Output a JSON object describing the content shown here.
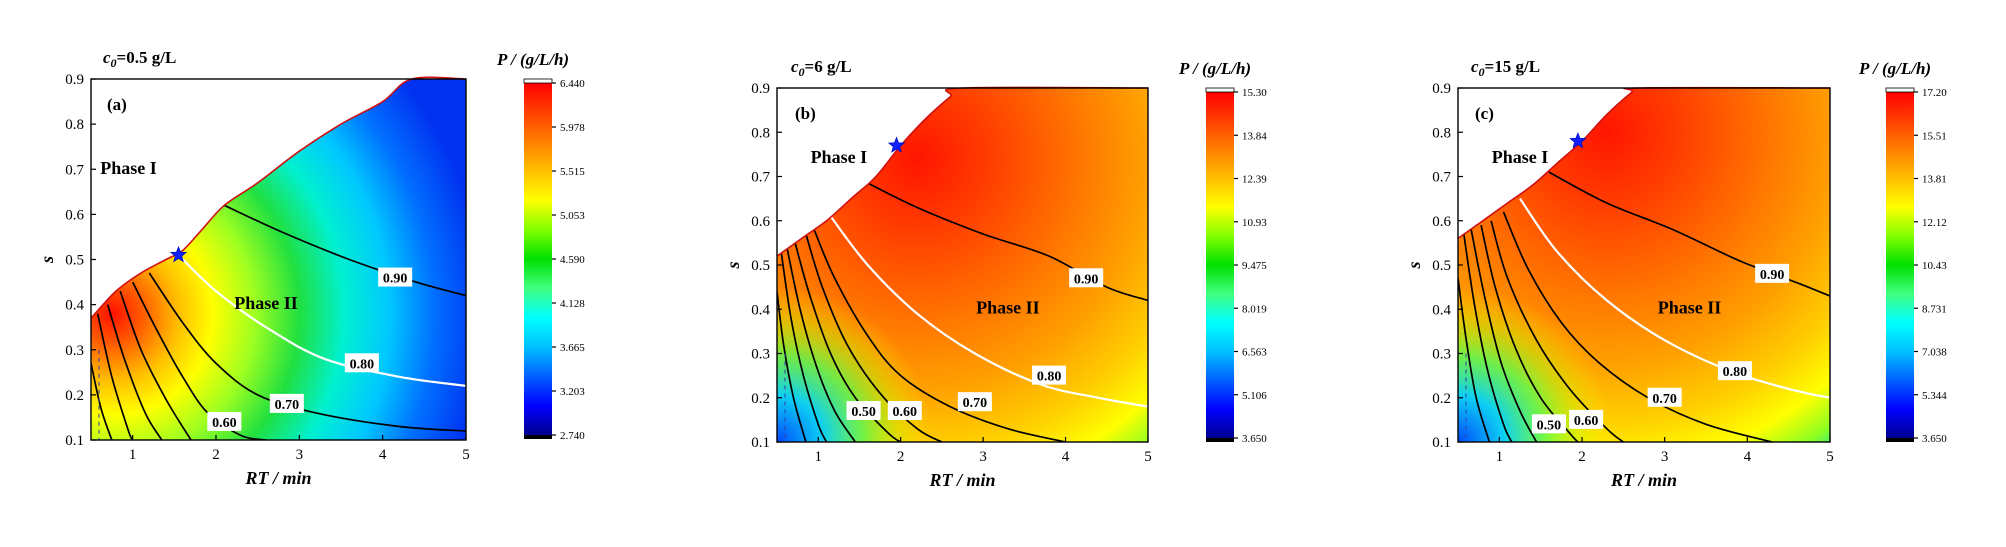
{
  "figure": {
    "xlabel": "RT / min",
    "ylabel": "s",
    "phase1_label": "Phase I",
    "phase2_label": "Phase II",
    "colorbar_title": "P / (g/L/h)"
  },
  "chart_data": [
    {
      "type": "heatmap",
      "tag": "(a)",
      "title": "c0=0.5 g/L",
      "title_main": "c",
      "title_sub": "0",
      "title_rest": "=0.5 g/L",
      "xlim": [
        0.5,
        5
      ],
      "ylim": [
        0.1,
        0.9
      ],
      "x_ticks": [
        "1",
        "2",
        "3",
        "4",
        "5"
      ],
      "y_ticks": [
        "0.1",
        "0.2",
        "0.3",
        "0.4",
        "0.5",
        "0.6",
        "0.7",
        "0.8",
        "0.9"
      ],
      "boundary": [
        [
          0.5,
          0.37
        ],
        [
          0.8,
          0.43
        ],
        [
          1.1,
          0.47
        ],
        [
          1.4,
          0.5
        ],
        [
          1.6,
          0.52
        ],
        [
          1.85,
          0.57
        ],
        [
          2.1,
          0.62
        ],
        [
          2.5,
          0.67
        ],
        [
          3.0,
          0.74
        ],
        [
          3.5,
          0.8
        ],
        [
          4.0,
          0.85
        ],
        [
          4.35,
          0.9
        ],
        [
          5.0,
          0.9
        ]
      ],
      "optimum": {
        "x": 1.55,
        "y": 0.51
      },
      "peak": {
        "x": 0.75,
        "y": 0.38
      },
      "colorbar_ticks": [
        "6.440",
        "5.978",
        "5.515",
        "5.053",
        "4.590",
        "4.128",
        "3.665",
        "3.203",
        "2.740"
      ],
      "colorbar_range": [
        2.74,
        6.44
      ],
      "contours": [
        {
          "label": "0.90",
          "white": false,
          "points": [
            [
              2.1,
              0.62
            ],
            [
              2.8,
              0.56
            ],
            [
              3.6,
              0.5
            ],
            [
              4.4,
              0.45
            ],
            [
              5.0,
              0.42
            ]
          ],
          "label_at": [
            4.15,
            0.46
          ]
        },
        {
          "label": "0.80",
          "white": true,
          "points": [
            [
              1.55,
              0.51
            ],
            [
              2.0,
              0.43
            ],
            [
              2.6,
              0.35
            ],
            [
              3.3,
              0.28
            ],
            [
              4.2,
              0.24
            ],
            [
              5.0,
              0.22
            ]
          ],
          "label_at": [
            3.75,
            0.27
          ]
        },
        {
          "label": "0.70",
          "white": false,
          "points": [
            [
              1.2,
              0.47
            ],
            [
              1.6,
              0.36
            ],
            [
              2.0,
              0.27
            ],
            [
              2.5,
              0.2
            ],
            [
              3.2,
              0.16
            ],
            [
              4.2,
              0.13
            ],
            [
              5.0,
              0.12
            ]
          ],
          "label_at": [
            2.85,
            0.18
          ]
        },
        {
          "label": "0.60",
          "white": false,
          "points": [
            [
              1.0,
              0.45
            ],
            [
              1.3,
              0.34
            ],
            [
              1.6,
              0.24
            ],
            [
              1.9,
              0.16
            ],
            [
              2.3,
              0.11
            ],
            [
              2.6,
              0.1
            ]
          ],
          "label_at": [
            2.1,
            0.14
          ]
        },
        {
          "label": "",
          "white": false,
          "points": [
            [
              0.85,
              0.43
            ],
            [
              1.1,
              0.3
            ],
            [
              1.4,
              0.19
            ],
            [
              1.7,
              0.1
            ]
          ],
          "label_at": null
        },
        {
          "label": "",
          "white": false,
          "points": [
            [
              0.7,
              0.4
            ],
            [
              0.9,
              0.28
            ],
            [
              1.15,
              0.16
            ],
            [
              1.35,
              0.1
            ]
          ],
          "label_at": null
        },
        {
          "label": "",
          "white": false,
          "points": [
            [
              0.58,
              0.38
            ],
            [
              0.75,
              0.24
            ],
            [
              0.95,
              0.12
            ],
            [
              1.0,
              0.1
            ]
          ],
          "label_at": null
        },
        {
          "label": "",
          "white": false,
          "points": [
            [
              0.5,
              0.27
            ],
            [
              0.62,
              0.17
            ],
            [
              0.75,
              0.1
            ]
          ],
          "label_at": null
        }
      ]
    },
    {
      "type": "heatmap",
      "tag": "(b)",
      "title": "c0=6 g/L",
      "title_main": "c",
      "title_sub": "0",
      "title_rest": "=6 g/L",
      "xlim": [
        0.5,
        5
      ],
      "ylim": [
        0.1,
        0.9
      ],
      "x_ticks": [
        "1",
        "2",
        "3",
        "4",
        "5"
      ],
      "y_ticks": [
        "0.1",
        "0.2",
        "0.3",
        "0.4",
        "0.5",
        "0.6",
        "0.7",
        "0.8",
        "0.9"
      ],
      "boundary": [
        [
          0.5,
          0.52
        ],
        [
          0.8,
          0.56
        ],
        [
          1.1,
          0.6
        ],
        [
          1.4,
          0.65
        ],
        [
          1.7,
          0.7
        ],
        [
          2.0,
          0.77
        ],
        [
          2.3,
          0.83
        ],
        [
          2.6,
          0.88
        ],
        [
          2.75,
          0.9
        ],
        [
          5.0,
          0.9
        ]
      ],
      "optimum": {
        "x": 1.95,
        "y": 0.77
      },
      "peak": {
        "x": 2.2,
        "y": 0.74
      },
      "colorbar_ticks": [
        "15.30",
        "13.84",
        "12.39",
        "10.93",
        "9.475",
        "8.019",
        "6.563",
        "5.106",
        "3.650"
      ],
      "colorbar_range": [
        3.65,
        15.3
      ],
      "contours": [
        {
          "label": "0.90",
          "white": false,
          "points": [
            [
              1.55,
              0.69
            ],
            [
              2.2,
              0.63
            ],
            [
              3.0,
              0.57
            ],
            [
              3.8,
              0.52
            ],
            [
              4.5,
              0.45
            ],
            [
              5.0,
              0.42
            ]
          ],
          "label_at": [
            4.25,
            0.47
          ]
        },
        {
          "label": "0.80",
          "white": true,
          "points": [
            [
              1.15,
              0.61
            ],
            [
              1.6,
              0.5
            ],
            [
              2.2,
              0.39
            ],
            [
              2.9,
              0.3
            ],
            [
              3.7,
              0.23
            ],
            [
              4.4,
              0.2
            ],
            [
              5.0,
              0.18
            ]
          ],
          "label_at": [
            3.8,
            0.25
          ]
        },
        {
          "label": "0.70",
          "white": false,
          "points": [
            [
              0.95,
              0.58
            ],
            [
              1.2,
              0.47
            ],
            [
              1.6,
              0.34
            ],
            [
              2.0,
              0.25
            ],
            [
              2.6,
              0.18
            ],
            [
              3.3,
              0.13
            ],
            [
              4.0,
              0.1
            ]
          ],
          "label_at": [
            2.9,
            0.19
          ]
        },
        {
          "label": "0.60",
          "white": false,
          "points": [
            [
              0.85,
              0.57
            ],
            [
              1.05,
              0.45
            ],
            [
              1.35,
              0.32
            ],
            [
              1.75,
              0.21
            ],
            [
              2.2,
              0.13
            ],
            [
              2.5,
              0.1
            ]
          ],
          "label_at": [
            2.05,
            0.17
          ]
        },
        {
          "label": "0.50",
          "white": false,
          "points": [
            [
              0.72,
              0.55
            ],
            [
              0.9,
              0.43
            ],
            [
              1.15,
              0.3
            ],
            [
              1.45,
              0.2
            ],
            [
              1.85,
              0.12
            ],
            [
              2.0,
              0.1
            ]
          ],
          "label_at": [
            1.55,
            0.17
          ]
        },
        {
          "label": "",
          "white": false,
          "points": [
            [
              0.62,
              0.54
            ],
            [
              0.78,
              0.4
            ],
            [
              0.98,
              0.27
            ],
            [
              1.2,
              0.17
            ],
            [
              1.45,
              0.1
            ]
          ],
          "label_at": null
        },
        {
          "label": "",
          "white": false,
          "points": [
            [
              0.55,
              0.53
            ],
            [
              0.67,
              0.38
            ],
            [
              0.82,
              0.25
            ],
            [
              1.0,
              0.14
            ],
            [
              1.1,
              0.1
            ]
          ],
          "label_at": null
        },
        {
          "label": "",
          "white": false,
          "points": [
            [
              0.5,
              0.44
            ],
            [
              0.58,
              0.32
            ],
            [
              0.7,
              0.2
            ],
            [
              0.85,
              0.1
            ]
          ],
          "label_at": null
        }
      ]
    },
    {
      "type": "heatmap",
      "tag": "(c)",
      "title": "c0=15 g/L",
      "title_main": "c",
      "title_sub": "0",
      "title_rest": "=15 g/L",
      "xlim": [
        0.5,
        5
      ],
      "ylim": [
        0.1,
        0.9
      ],
      "x_ticks": [
        "1",
        "2",
        "3",
        "4",
        "5"
      ],
      "y_ticks": [
        "0.1",
        "0.2",
        "0.3",
        "0.4",
        "0.5",
        "0.6",
        "0.7",
        "0.8",
        "0.9"
      ],
      "boundary": [
        [
          0.5,
          0.56
        ],
        [
          0.8,
          0.6
        ],
        [
          1.1,
          0.64
        ],
        [
          1.4,
          0.68
        ],
        [
          1.7,
          0.73
        ],
        [
          2.0,
          0.78
        ],
        [
          2.3,
          0.84
        ],
        [
          2.6,
          0.89
        ],
        [
          2.7,
          0.9
        ],
        [
          5.0,
          0.9
        ]
      ],
      "optimum": {
        "x": 1.95,
        "y": 0.78
      },
      "peak": {
        "x": 2.3,
        "y": 0.8
      },
      "colorbar_ticks": [
        "17.20",
        "15.51",
        "13.81",
        "12.12",
        "10.43",
        "8.731",
        "7.038",
        "5.344",
        "3.650"
      ],
      "colorbar_range": [
        3.65,
        17.2
      ],
      "contours": [
        {
          "label": "0.90",
          "white": false,
          "points": [
            [
              1.6,
              0.71
            ],
            [
              2.3,
              0.64
            ],
            [
              3.1,
              0.58
            ],
            [
              3.9,
              0.51
            ],
            [
              4.6,
              0.46
            ],
            [
              5.0,
              0.43
            ]
          ],
          "label_at": [
            4.3,
            0.48
          ]
        },
        {
          "label": "0.80",
          "white": true,
          "points": [
            [
              1.25,
              0.65
            ],
            [
              1.7,
              0.53
            ],
            [
              2.3,
              0.42
            ],
            [
              3.0,
              0.33
            ],
            [
              3.8,
              0.26
            ],
            [
              4.5,
              0.22
            ],
            [
              5.0,
              0.2
            ]
          ],
          "label_at": [
            3.85,
            0.26
          ]
        },
        {
          "label": "0.70",
          "white": false,
          "points": [
            [
              1.05,
              0.62
            ],
            [
              1.35,
              0.49
            ],
            [
              1.75,
              0.37
            ],
            [
              2.2,
              0.28
            ],
            [
              2.8,
              0.2
            ],
            [
              3.5,
              0.14
            ],
            [
              4.3,
              0.1
            ]
          ],
          "label_at": [
            3.0,
            0.2
          ]
        },
        {
          "label": "0.60",
          "white": false,
          "points": [
            [
              0.9,
              0.6
            ],
            [
              1.1,
              0.47
            ],
            [
              1.45,
              0.33
            ],
            [
              1.85,
              0.22
            ],
            [
              2.3,
              0.13
            ],
            [
              2.5,
              0.1
            ]
          ],
          "label_at": [
            2.05,
            0.15
          ]
        },
        {
          "label": "0.50",
          "white": false,
          "points": [
            [
              0.78,
              0.59
            ],
            [
              0.95,
              0.45
            ],
            [
              1.2,
              0.31
            ],
            [
              1.5,
              0.2
            ],
            [
              1.85,
              0.12
            ],
            [
              1.95,
              0.1
            ]
          ],
          "label_at": [
            1.6,
            0.14
          ]
        },
        {
          "label": "",
          "white": false,
          "points": [
            [
              0.66,
              0.58
            ],
            [
              0.82,
              0.43
            ],
            [
              1.02,
              0.28
            ],
            [
              1.25,
              0.17
            ],
            [
              1.45,
              0.1
            ]
          ],
          "label_at": null
        },
        {
          "label": "",
          "white": false,
          "points": [
            [
              0.57,
              0.57
            ],
            [
              0.7,
              0.41
            ],
            [
              0.86,
              0.26
            ],
            [
              1.05,
              0.14
            ],
            [
              1.15,
              0.1
            ]
          ],
          "label_at": null
        },
        {
          "label": "",
          "white": false,
          "points": [
            [
              0.5,
              0.47
            ],
            [
              0.6,
              0.33
            ],
            [
              0.72,
              0.2
            ],
            [
              0.88,
              0.1
            ]
          ],
          "label_at": null
        }
      ]
    }
  ]
}
